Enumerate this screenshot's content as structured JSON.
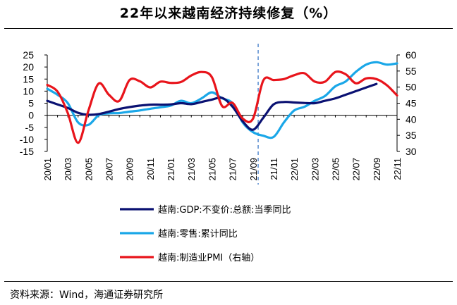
{
  "chart_data": {
    "type": "line",
    "title": "22年以来越南经济持续修复（%）",
    "x": [
      "20/01",
      "20/02",
      "20/03",
      "20/04",
      "20/05",
      "20/06",
      "20/07",
      "20/08",
      "20/09",
      "20/10",
      "20/11",
      "20/12",
      "21/01",
      "21/02",
      "21/03",
      "21/04",
      "21/05",
      "21/06",
      "21/07",
      "21/08",
      "21/09",
      "21/10",
      "21/11",
      "21/12",
      "22/01",
      "22/02",
      "22/03",
      "22/04",
      "22/05",
      "22/06",
      "22/07",
      "22/08",
      "22/09",
      "22/10",
      "22/11"
    ],
    "x_tick_labels": [
      "20/01",
      "20/03",
      "20/05",
      "20/07",
      "20/09",
      "20/11",
      "21/01",
      "21/03",
      "21/05",
      "21/07",
      "21/09",
      "21/11",
      "22/01",
      "22/03",
      "22/05",
      "22/07",
      "22/09",
      "22/11"
    ],
    "y_left": {
      "ylim": [
        -15,
        25
      ],
      "ticks": [
        -15,
        -10,
        -5,
        0,
        5,
        10,
        15,
        20,
        25
      ]
    },
    "y_right": {
      "ylim": [
        30,
        60
      ],
      "ticks": [
        30,
        35,
        40,
        45,
        50,
        55,
        60
      ]
    },
    "divider_at": "21/10",
    "series": [
      {
        "name": "越南:GDP:不变价:总额:当季同比",
        "color": "#0a1172",
        "axis": "left",
        "values": [
          6,
          4.5,
          3,
          1,
          0.2,
          0.5,
          1.5,
          2.6,
          3.4,
          4,
          4.4,
          4.4,
          4.5,
          5,
          4.6,
          5.5,
          6.5,
          7.2,
          3.6,
          -2.5,
          -6,
          -1,
          4.5,
          5.5,
          5.3,
          5.1,
          5,
          6,
          7,
          8.5,
          10,
          11.5,
          13,
          null,
          null
        ]
      },
      {
        "name": "越南:零售:累计同比",
        "color": "#1aa7e8",
        "axis": "left",
        "values": [
          11,
          8.5,
          5,
          -3,
          -4,
          0,
          0.8,
          0.9,
          1.5,
          2,
          2.7,
          3.3,
          4,
          6,
          5,
          7,
          9.5,
          7,
          5,
          -3,
          -7,
          -8.5,
          -9,
          -3,
          2,
          3.5,
          6,
          8,
          12,
          14,
          18,
          21,
          22,
          21,
          21.5
        ]
      },
      {
        "name": "越南:制造业PMI（右轴）",
        "color": "#e8141b",
        "axis": "right",
        "values": [
          50.7,
          48.6,
          41.9,
          32.7,
          42.7,
          51.1,
          47.6,
          45.7,
          52.2,
          51.8,
          49.9,
          51.7,
          51.3,
          51.6,
          53.6,
          54.7,
          53.1,
          44.1,
          45.1,
          40.2,
          40.2,
          52.1,
          52.2,
          52.5,
          53.7,
          54.3,
          51.7,
          51.7,
          54.7,
          54.0,
          51.2,
          52.7,
          52.5,
          50.6,
          47.4
        ]
      }
    ],
    "legend": {
      "position": "bottom",
      "entries": [
        "越南:GDP:不变价:总额:当季同比",
        "越南:零售:累计同比",
        "越南:制造业PMI（右轴）"
      ]
    }
  },
  "footer": {
    "source": "资料来源：Wind，海通证券研究所"
  }
}
